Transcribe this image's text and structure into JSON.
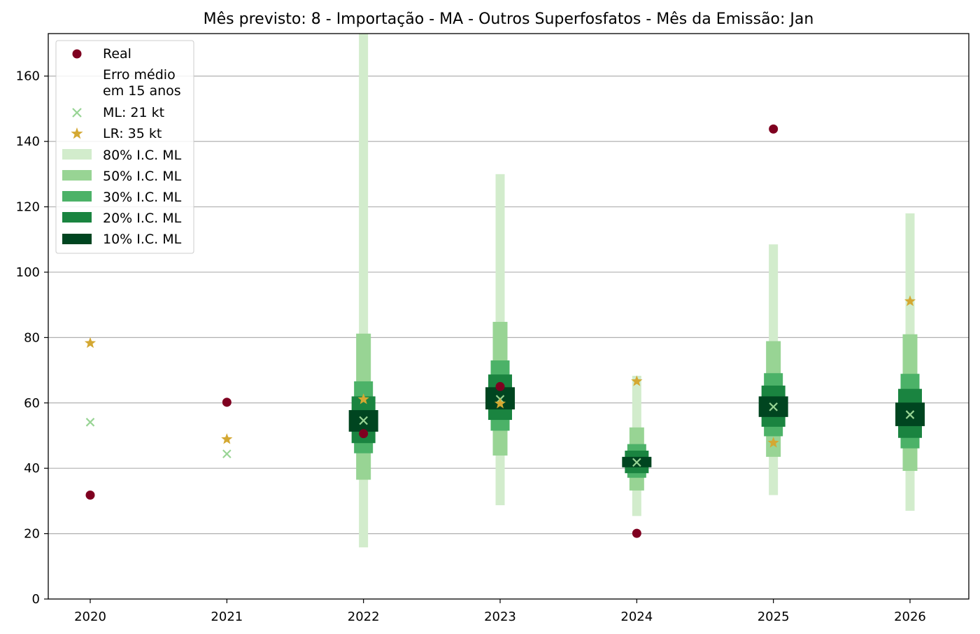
{
  "chart_data": {
    "type": "interval-forecast",
    "title": "Mês previsto: 8 - Importação - MA - Outros Superfosfatos - Mês da Emissão: Jan",
    "xlabel": "",
    "ylabel": "",
    "categories": [
      "2020",
      "2021",
      "2022",
      "2023",
      "2024",
      "2025",
      "2026"
    ],
    "ylim": [
      0,
      173
    ],
    "yticks": [
      "0",
      "20",
      "40",
      "60",
      "80",
      "100",
      "120",
      "140",
      "160"
    ],
    "grid": "horizontal",
    "legend_position": "top-left",
    "colors": {
      "real": "#7f0020",
      "ml": "#98d494",
      "lr": "#d4a832",
      "ci80": "#d2eccc",
      "ci50": "#98d494",
      "ci30": "#4cb268",
      "ci20": "#1a8440",
      "ci10": "#004520"
    },
    "legend": {
      "real": "Real",
      "error_line1": "Erro médio",
      "error_line2": "em 15 anos",
      "ml": "ML: 21 kt",
      "lr": "LR: 35 kt",
      "ci80": "80% I.C. ML",
      "ci50": "50% I.C. ML",
      "ci30": "30% I.C. ML",
      "ci20": "20% I.C. ML",
      "ci10": "10% I.C. ML"
    },
    "series": {
      "real": [
        31.8,
        60.2,
        50.6,
        65.0,
        20.1,
        143.8,
        null
      ],
      "ml": [
        54.1,
        44.4,
        54.6,
        61.1,
        41.8,
        58.8,
        56.4
      ],
      "lr": [
        78.3,
        48.9,
        61.1,
        59.8,
        66.6,
        47.8,
        91.1
      ]
    },
    "intervals": {
      "ci80": [
        null,
        null,
        [
          15.8,
          173
        ],
        [
          28.7,
          130.0
        ],
        [
          25.4,
          68.3
        ],
        [
          31.8,
          108.5
        ],
        [
          27.0,
          118.0
        ]
      ],
      "ci50": [
        null,
        null,
        [
          36.5,
          81.2
        ],
        [
          43.9,
          84.8
        ],
        [
          33.2,
          52.5
        ],
        [
          43.5,
          78.9
        ],
        [
          39.2,
          81.0
        ]
      ],
      "ci30": [
        null,
        null,
        [
          44.6,
          66.6
        ],
        [
          51.5,
          73.0
        ],
        [
          37.1,
          47.4
        ],
        [
          49.8,
          69.1
        ],
        [
          46.1,
          68.9
        ]
      ],
      "ci20": [
        null,
        null,
        [
          47.7,
          62.0
        ],
        [
          54.8,
          68.7
        ],
        [
          38.5,
          45.4
        ],
        [
          52.7,
          65.3
        ],
        [
          49.3,
          64.3
        ]
      ],
      "ci10": [
        null,
        null,
        [
          51.2,
          57.8
        ],
        [
          58.0,
          64.8
        ],
        [
          40.3,
          43.5
        ],
        [
          55.7,
          62.0
        ],
        [
          52.9,
          60.1
        ]
      ]
    }
  }
}
